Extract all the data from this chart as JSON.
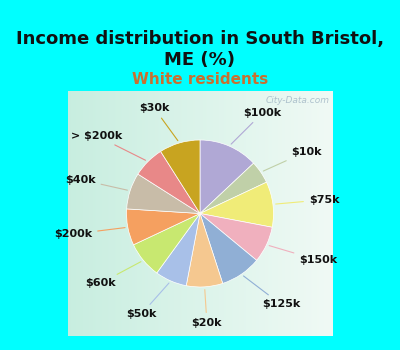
{
  "title": "Income distribution in South Bristol,\nME (%)",
  "subtitle": "White residents",
  "bg_cyan": "#00FFFF",
  "labels": [
    "$100k",
    "$10k",
    "$75k",
    "$150k",
    "$125k",
    "$20k",
    "$50k",
    "$60k",
    "$200k",
    "$40k",
    "> $200k",
    "$30k"
  ],
  "values": [
    13,
    5,
    10,
    8,
    9,
    8,
    7,
    8,
    8,
    8,
    7,
    9
  ],
  "colors": [
    "#b0a8d5",
    "#c0d0a8",
    "#f0ec78",
    "#f0b0be",
    "#90afd5",
    "#f5c890",
    "#a8c0e8",
    "#c8e870",
    "#f5a060",
    "#c8bca8",
    "#e88888",
    "#c8a420"
  ],
  "watermark": "City-Data.com",
  "title_fontsize": 13,
  "subtitle_fontsize": 11,
  "label_fontsize": 8
}
